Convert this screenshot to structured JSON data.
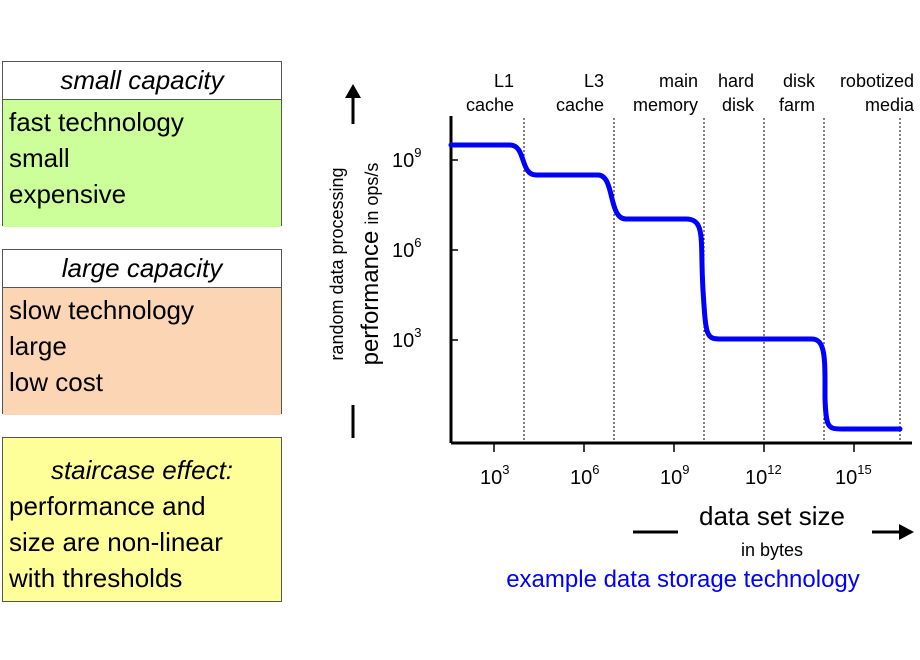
{
  "boxes": [
    {
      "title": "small capacity",
      "lines": [
        "fast technology",
        "small",
        "expensive"
      ],
      "color": "#ccff99"
    },
    {
      "title": "large capacity",
      "lines": [
        "slow technology",
        "large",
        "low cost"
      ],
      "color": "#fcd5b5"
    }
  ],
  "note": {
    "title": "staircase effect:",
    "lines": [
      "performance and",
      "size are non-linear",
      "with thresholds"
    ],
    "color": "#ffff99"
  },
  "chart": {
    "y_label_small": "random data processing",
    "y_label_main": "performance",
    "y_label_unit": "in ops/s",
    "x_label_main": "data set size",
    "x_label_unit": "in bytes",
    "caption": "example data storage technology",
    "curve_color": "#0000ff",
    "y_ticks": [
      {
        "base": "10",
        "exp": "9"
      },
      {
        "base": "10",
        "exp": "6"
      },
      {
        "base": "10",
        "exp": "3"
      }
    ],
    "x_ticks": [
      {
        "base": "10",
        "exp": "3"
      },
      {
        "base": "10",
        "exp": "6"
      },
      {
        "base": "10",
        "exp": "9"
      },
      {
        "base": "10",
        "exp": "12"
      },
      {
        "base": "10",
        "exp": "15"
      }
    ],
    "tiers": [
      [
        "L1",
        "cache"
      ],
      [
        "L3",
        "cache"
      ],
      [
        "main",
        "memory"
      ],
      [
        "hard",
        "disk"
      ],
      [
        "disk",
        "farm"
      ],
      [
        "robotized",
        "media"
      ]
    ]
  }
}
